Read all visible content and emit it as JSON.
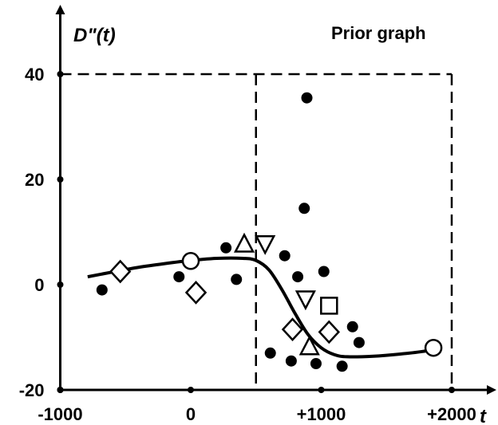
{
  "chart_data": {
    "type": "scatter",
    "title": "Prior graph",
    "xlabel": "t",
    "ylabel": "D\"(t)",
    "xlim": [
      -1000,
      2200
    ],
    "ylim": [
      -20,
      45
    ],
    "x_ticks": [
      -1000,
      0,
      1000,
      2000
    ],
    "x_tick_labels": [
      "-1000",
      "0",
      "+1000",
      "+2000"
    ],
    "y_ticks": [
      -20,
      0,
      20,
      40
    ],
    "y_tick_labels": [
      "-20",
      "0",
      "20",
      "40"
    ],
    "grid": false,
    "guide_box": {
      "x0": 500,
      "x1": 2000,
      "y_top": 40
    },
    "series": [
      {
        "marker": "filled-circle",
        "points": [
          [
            -680,
            -1
          ],
          [
            -90,
            1.5
          ],
          [
            350,
            1
          ],
          [
            270,
            7
          ],
          [
            890,
            35.5
          ],
          [
            870,
            14.5
          ],
          [
            720,
            5.5
          ],
          [
            820,
            1.5
          ],
          [
            1020,
            2.5
          ],
          [
            610,
            -13
          ],
          [
            770,
            -14.5
          ],
          [
            960,
            -15
          ],
          [
            1160,
            -15.5
          ],
          [
            1240,
            -8
          ],
          [
            1290,
            -11
          ]
        ]
      },
      {
        "marker": "open-diamond",
        "points": [
          [
            -540,
            2.5
          ],
          [
            40,
            -1.5
          ],
          [
            780,
            -8.5
          ],
          [
            1060,
            -9
          ]
        ]
      },
      {
        "marker": "open-circle",
        "points": [
          [
            0,
            4.5
          ],
          [
            1860,
            -12
          ]
        ]
      },
      {
        "marker": "open-triangle-up",
        "points": [
          [
            410,
            7.5
          ],
          [
            910,
            -12
          ]
        ]
      },
      {
        "marker": "open-triangle-down",
        "points": [
          [
            570,
            8
          ],
          [
            880,
            -2.5
          ]
        ]
      },
      {
        "marker": "open-square",
        "points": [
          [
            1060,
            -4
          ]
        ]
      }
    ],
    "fit_curve": [
      [
        -790,
        1.5
      ],
      [
        -600,
        2.4
      ],
      [
        -400,
        3.3
      ],
      [
        -200,
        4.0
      ],
      [
        0,
        4.6
      ],
      [
        200,
        5.0
      ],
      [
        400,
        5.0
      ],
      [
        500,
        4.6
      ],
      [
        600,
        2.8
      ],
      [
        700,
        -1.0
      ],
      [
        800,
        -5.5
      ],
      [
        900,
        -9.5
      ],
      [
        1000,
        -12.0
      ],
      [
        1100,
        -13.3
      ],
      [
        1200,
        -13.7
      ],
      [
        1400,
        -13.6
      ],
      [
        1600,
        -13.2
      ],
      [
        1800,
        -12.6
      ],
      [
        1860,
        -12.0
      ]
    ]
  }
}
